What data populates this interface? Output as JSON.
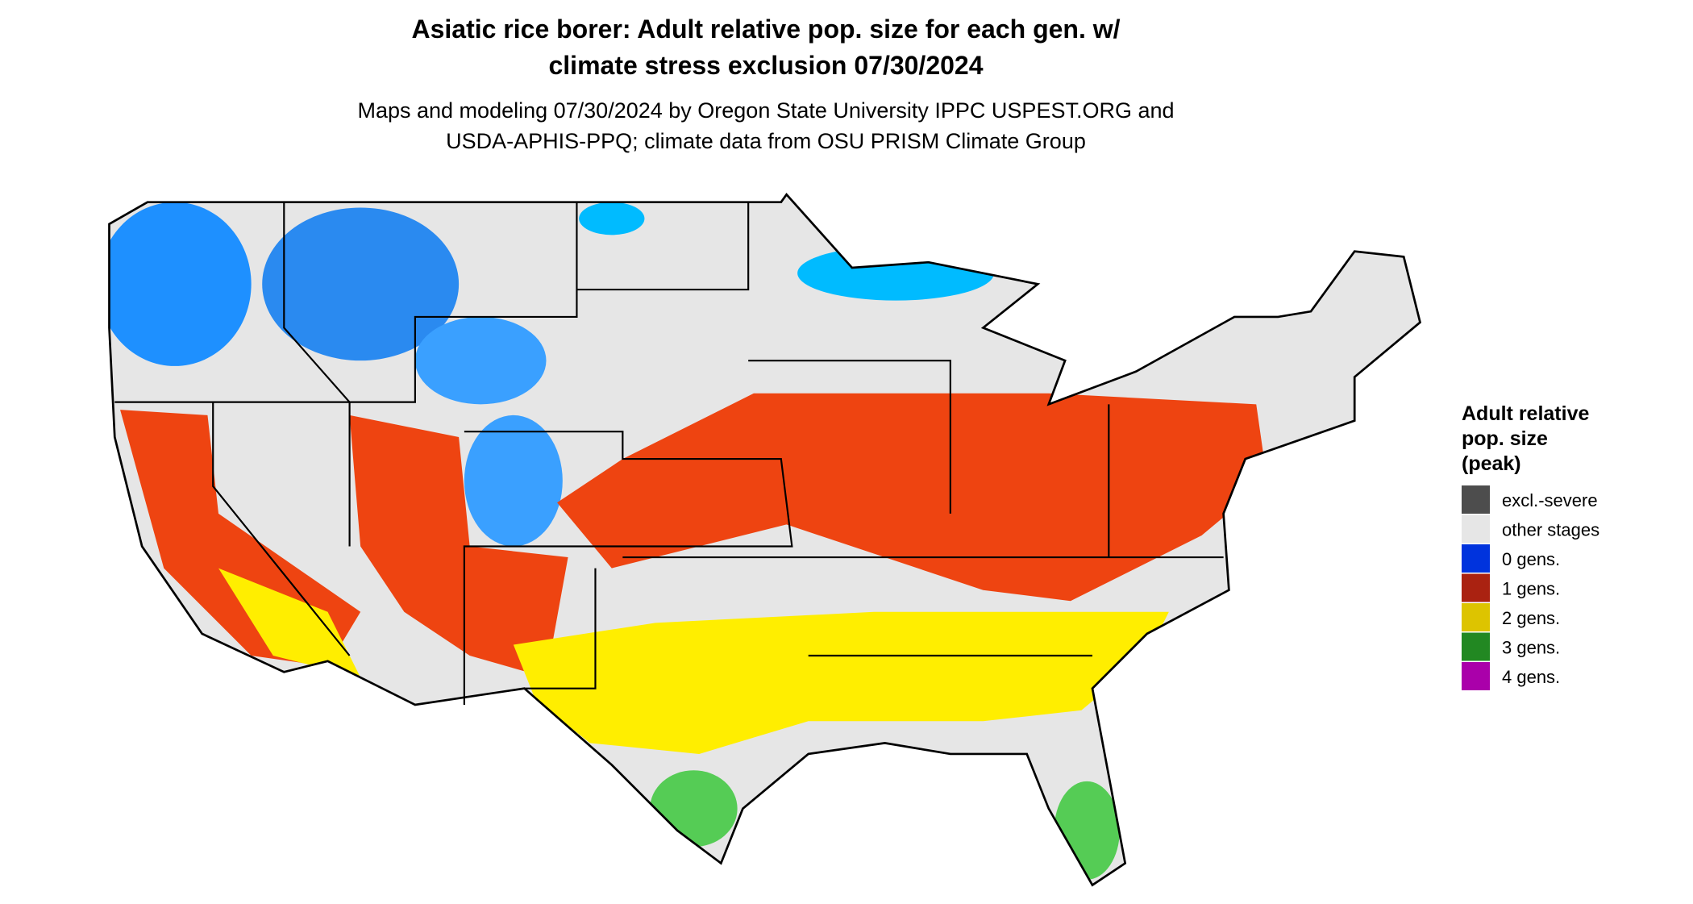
{
  "header": {
    "title": [
      "Asiatic rice borer: Adult relative pop. size for each gen. w/",
      "climate stress exclusion 07/30/2024"
    ],
    "subtitle": [
      "Maps and modeling 07/30/2024 by Oregon State University IPPC USPEST.ORG and",
      "USDA-APHIS-PPQ; climate data from OSU PRISM Climate Group"
    ]
  },
  "legend": {
    "title": [
      "Adult relative",
      "pop. size",
      "(peak)"
    ],
    "items": [
      {
        "label": "excl.-severe",
        "color": "#4d4d4d"
      },
      {
        "label": "other stages",
        "color": "#e6e6e6"
      },
      {
        "label": "0 gens.",
        "color": "#0033dd"
      },
      {
        "label": "1 gens.",
        "color": "#aa2211"
      },
      {
        "label": "2 gens.",
        "color": "#ddc400"
      },
      {
        "label": "3 gens.",
        "color": "#228822"
      },
      {
        "label": "4 gens.",
        "color": "#aa00aa"
      }
    ]
  }
}
